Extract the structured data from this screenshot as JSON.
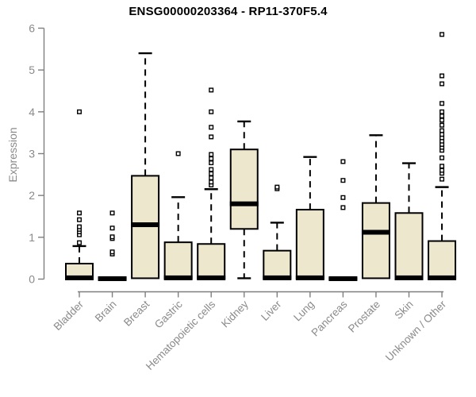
{
  "chart_data": {
    "type": "boxplot",
    "title": "ENSG00000203364 - RP11-370F5.4",
    "ylabel": "Expression",
    "xlabel": "",
    "ylim": [
      0,
      6
    ],
    "yticks": [
      0,
      1,
      2,
      3,
      4,
      5,
      6
    ],
    "grid": false,
    "legend": null,
    "categories": [
      "Bladder",
      "Brain",
      "Breast",
      "Gastric",
      "Hematopoietic cells",
      "Kidney",
      "Liver",
      "Lung",
      "Pancreas",
      "Prostate",
      "Skin",
      "Unknown / Other"
    ],
    "series": [
      {
        "name": "Bladder",
        "low": 0,
        "q1": 0.01,
        "median": 0.03,
        "q3": 0.37,
        "high": 0.79,
        "outliers": [
          0.87,
          1.06,
          1.13,
          1.19,
          1.25,
          1.42,
          1.58,
          4.0
        ]
      },
      {
        "name": "Brain",
        "low": 0,
        "q1": 0.0,
        "median": 0.01,
        "q3": 0.02,
        "high": 0.03,
        "outliers": [
          0.6,
          0.65,
          0.97,
          1.01,
          1.22,
          1.58
        ]
      },
      {
        "name": "Breast",
        "low": 0,
        "q1": 0.02,
        "median": 1.3,
        "q3": 2.47,
        "high": 5.4,
        "outliers": []
      },
      {
        "name": "Gastric",
        "low": 0,
        "q1": 0.01,
        "median": 0.03,
        "q3": 0.88,
        "high": 1.96,
        "outliers": [
          3.0
        ]
      },
      {
        "name": "Hematopoietic cells",
        "low": 0,
        "q1": 0.01,
        "median": 0.03,
        "q3": 0.84,
        "high": 2.15,
        "outliers": [
          2.25,
          2.32,
          2.42,
          2.52,
          2.62,
          2.78,
          2.88,
          2.98,
          3.4,
          3.63,
          4.0,
          4.52
        ]
      },
      {
        "name": "Kidney",
        "low": 0.02,
        "q1": 1.2,
        "median": 1.8,
        "q3": 3.1,
        "high": 3.77,
        "outliers": []
      },
      {
        "name": "Liver",
        "low": 0,
        "q1": 0.01,
        "median": 0.03,
        "q3": 0.68,
        "high": 1.35,
        "outliers": [
          2.16,
          2.2
        ]
      },
      {
        "name": "Lung",
        "low": 0,
        "q1": 0.01,
        "median": 0.03,
        "q3": 1.66,
        "high": 2.92,
        "outliers": []
      },
      {
        "name": "Pancreas",
        "low": 0,
        "q1": 0.0,
        "median": 0.01,
        "q3": 0.02,
        "high": 0.03,
        "outliers": [
          1.71,
          1.95,
          2.36,
          2.81
        ]
      },
      {
        "name": "Prostate",
        "low": 0,
        "q1": 0.02,
        "median": 1.12,
        "q3": 1.82,
        "high": 3.44,
        "outliers": []
      },
      {
        "name": "Skin",
        "low": 0,
        "q1": 0.01,
        "median": 0.03,
        "q3": 1.58,
        "high": 2.77,
        "outliers": []
      },
      {
        "name": "Unknown / Other",
        "low": 0,
        "q1": 0.01,
        "median": 0.03,
        "q3": 0.91,
        "high": 2.2,
        "outliers": [
          2.39,
          2.53,
          2.6,
          2.7,
          2.9,
          3.08,
          3.15,
          3.22,
          3.3,
          3.38,
          3.46,
          3.55,
          3.68,
          3.8,
          3.9,
          4.0,
          4.2,
          4.67,
          4.86,
          5.85
        ]
      }
    ],
    "colors": {
      "box_fill": "#ede7ce",
      "box_border": "#000000",
      "median": "#000000",
      "whisker": "#000000",
      "outlier_fill": "#ffffff",
      "outlier_border": "#000000",
      "axis": "#7f7f7f",
      "tick_label": "#8a8a8a",
      "title": "#000000"
    }
  }
}
